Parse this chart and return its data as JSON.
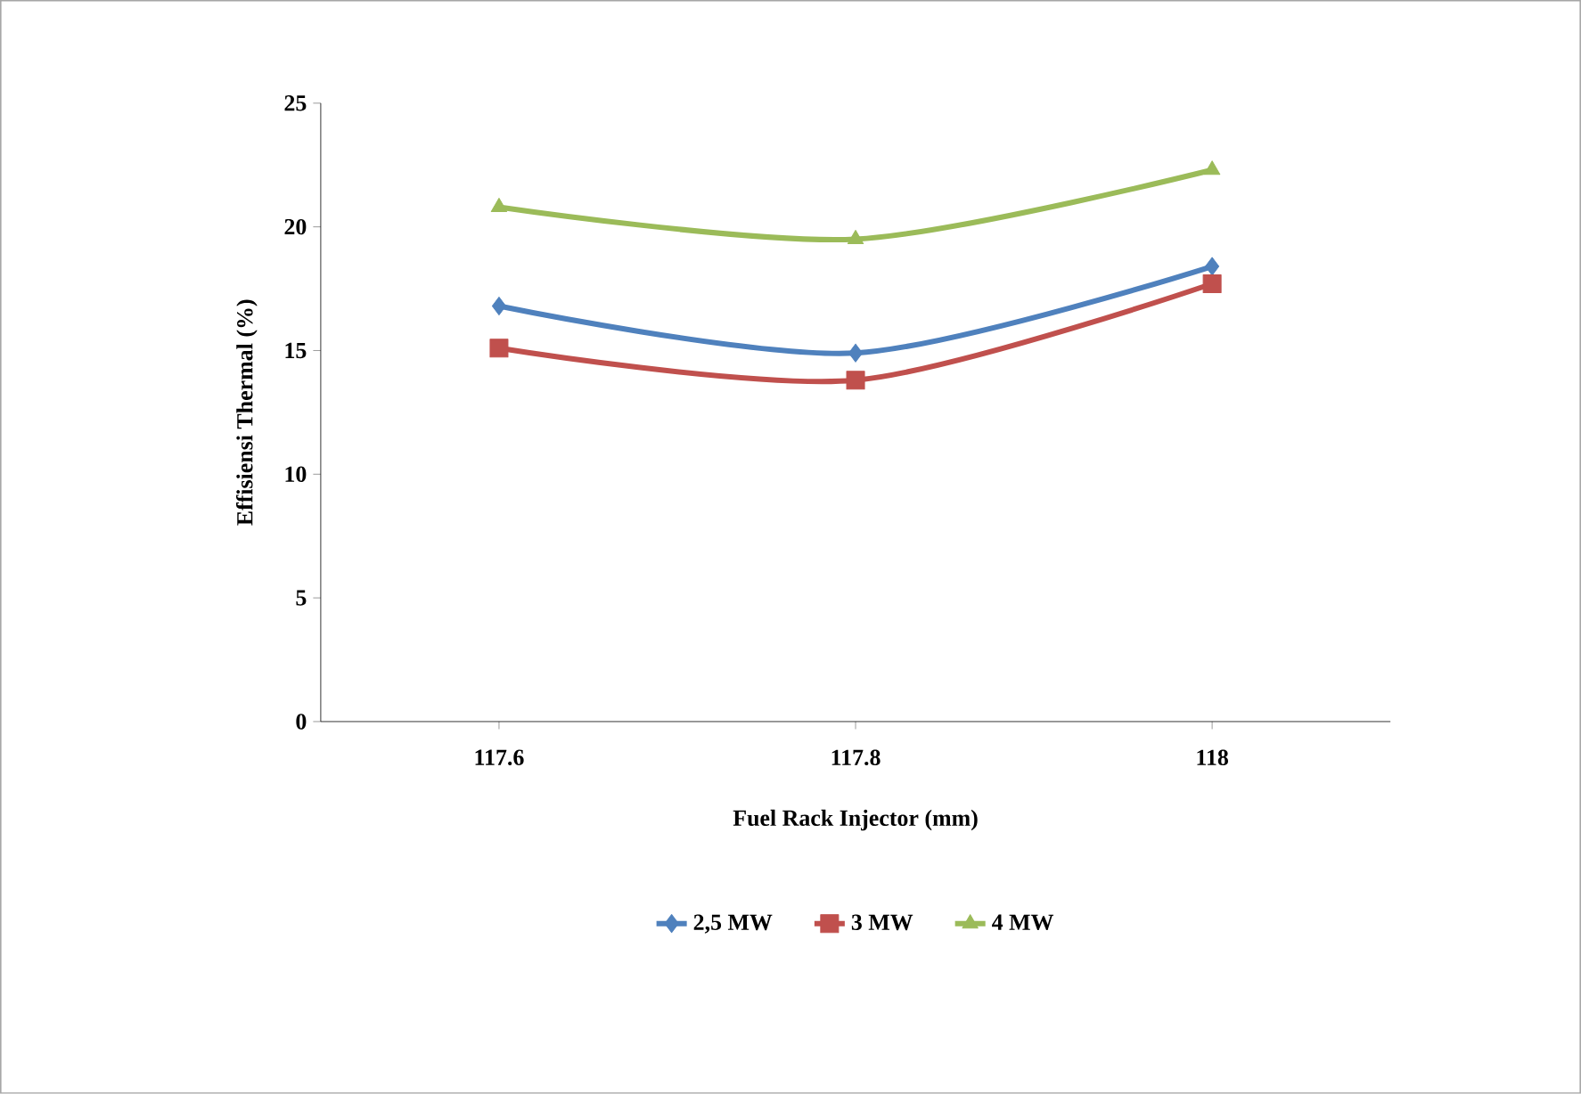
{
  "chart_data": {
    "type": "line",
    "xlabel": "Fuel Rack Injector (mm)",
    "ylabel": "Effisiensi Thermal (%)",
    "x": [
      117.6,
      117.8,
      118
    ],
    "series": [
      {
        "name": "2,5 MW",
        "color": "#4f81bd",
        "marker": "diamond",
        "values": [
          16.8,
          14.9,
          18.4
        ]
      },
      {
        "name": "3 MW",
        "color": "#c0504d",
        "marker": "square",
        "values": [
          15.1,
          13.8,
          17.7
        ]
      },
      {
        "name": "4 MW",
        "color": "#9bbb59",
        "marker": "triangle",
        "values": [
          20.8,
          19.5,
          22.3
        ]
      }
    ],
    "xlim": [
      117.5,
      118.1
    ],
    "xticks": [
      117.6,
      117.8,
      118
    ],
    "ylim": [
      0,
      25
    ],
    "yticks": [
      0,
      5,
      10,
      15,
      20,
      25
    ],
    "grid": false,
    "legend": "bottom",
    "line_style": "solid"
  }
}
